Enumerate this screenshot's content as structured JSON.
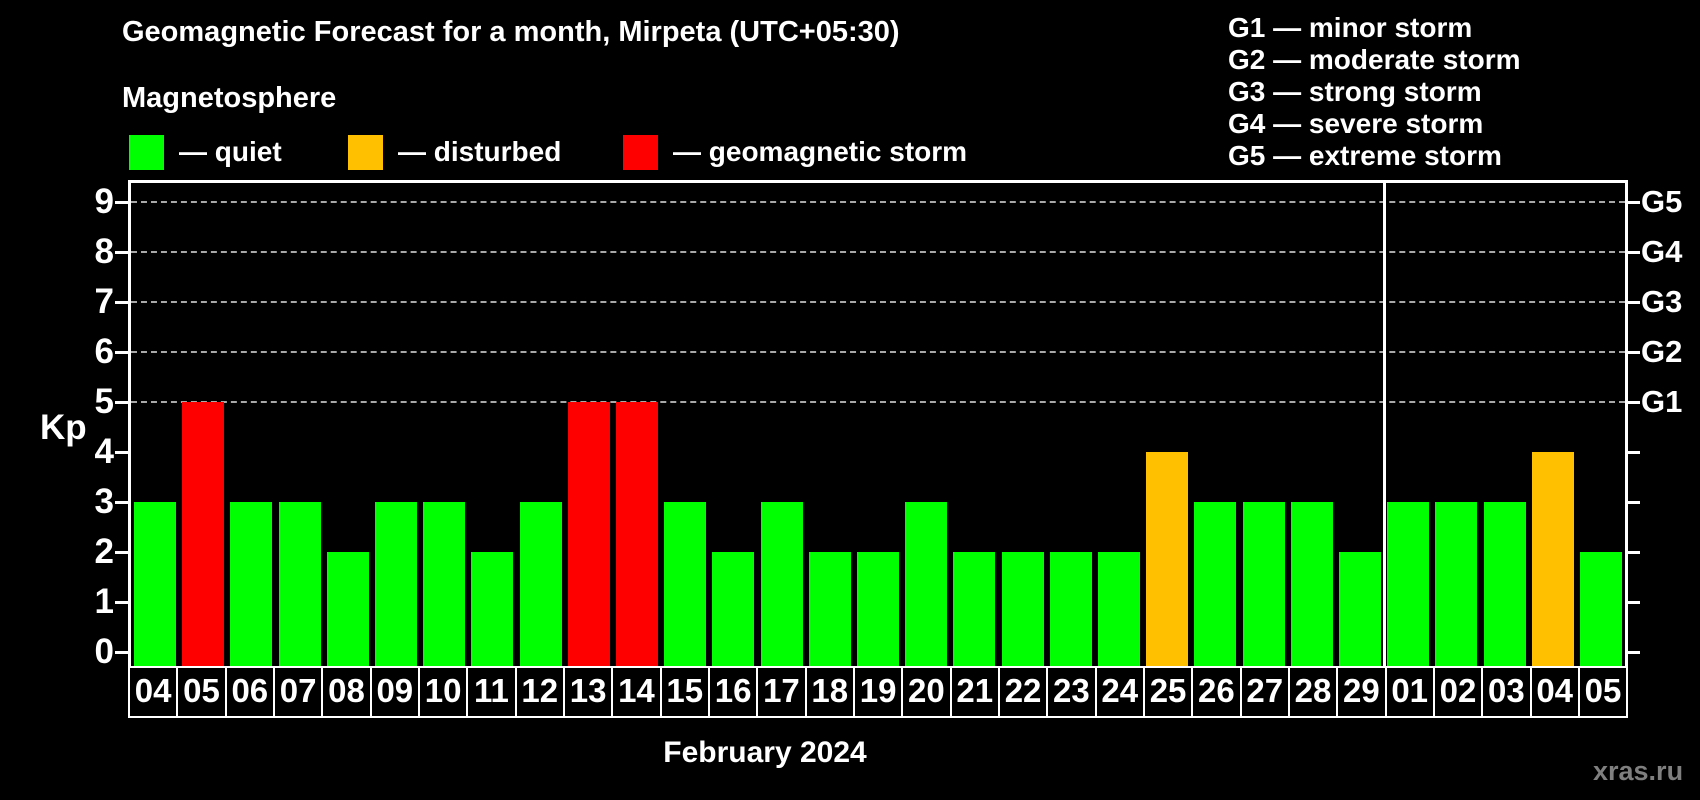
{
  "header": {
    "title": "Geomagnetic Forecast for a month, Mirpeta (UTC+05:30)",
    "subtitle": "Magnetosphere"
  },
  "legend": {
    "items": [
      {
        "key": "quiet",
        "label": "— quiet",
        "color": "#00ff00"
      },
      {
        "key": "disturbed",
        "label": "— disturbed",
        "color": "#ffc000"
      },
      {
        "key": "storm",
        "label": "— geomagnetic storm",
        "color": "#ff0000"
      }
    ]
  },
  "g_legend": {
    "items": [
      "G1 — minor storm",
      "G2 — moderate storm",
      "G3 — strong storm",
      "G4 — severe storm",
      "G5 — extreme storm"
    ]
  },
  "colors": {
    "background": "#000000",
    "axis": "#ffffff",
    "gridline": "#a8a8a8",
    "watermark": "#7f7f7f",
    "levels": {
      "quiet": "#00ff00",
      "disturbed": "#ffc000",
      "storm": "#ff0000"
    }
  },
  "footer": {
    "watermark": "xras.ru"
  },
  "chart_data": {
    "type": "bar",
    "title": "Geomagnetic Forecast for a month, Mirpeta (UTC+05:30)",
    "xlabel": "February 2024",
    "ylabel": "Kp",
    "ylim": [
      0,
      9.4
    ],
    "y_ticks": [
      0,
      1,
      2,
      3,
      4,
      5,
      6,
      7,
      8,
      9
    ],
    "gridlines_at": [
      5,
      6,
      7,
      8,
      9
    ],
    "grid": "dashed, only at G-storm levels 5-9",
    "legend_position": "top-left",
    "right_axis_labels": [
      {
        "kp": 5,
        "text": "G1"
      },
      {
        "kp": 6,
        "text": "G2"
      },
      {
        "kp": 7,
        "text": "G3"
      },
      {
        "kp": 8,
        "text": "G4"
      },
      {
        "kp": 9,
        "text": "G5"
      }
    ],
    "month_separator_after_index": 25,
    "bars": [
      {
        "date": "04",
        "kp": 3,
        "level": "quiet"
      },
      {
        "date": "05",
        "kp": 5,
        "level": "storm"
      },
      {
        "date": "06",
        "kp": 3,
        "level": "quiet"
      },
      {
        "date": "07",
        "kp": 3,
        "level": "quiet"
      },
      {
        "date": "08",
        "kp": 2,
        "level": "quiet"
      },
      {
        "date": "09",
        "kp": 3,
        "level": "quiet"
      },
      {
        "date": "10",
        "kp": 3,
        "level": "quiet"
      },
      {
        "date": "11",
        "kp": 2,
        "level": "quiet"
      },
      {
        "date": "12",
        "kp": 3,
        "level": "quiet"
      },
      {
        "date": "13",
        "kp": 5,
        "level": "storm"
      },
      {
        "date": "14",
        "kp": 5,
        "level": "storm"
      },
      {
        "date": "15",
        "kp": 3,
        "level": "quiet"
      },
      {
        "date": "16",
        "kp": 2,
        "level": "quiet"
      },
      {
        "date": "17",
        "kp": 3,
        "level": "quiet"
      },
      {
        "date": "18",
        "kp": 2,
        "level": "quiet"
      },
      {
        "date": "19",
        "kp": 2,
        "level": "quiet"
      },
      {
        "date": "20",
        "kp": 3,
        "level": "quiet"
      },
      {
        "date": "21",
        "kp": 2,
        "level": "quiet"
      },
      {
        "date": "22",
        "kp": 2,
        "level": "quiet"
      },
      {
        "date": "23",
        "kp": 2,
        "level": "quiet"
      },
      {
        "date": "24",
        "kp": 2,
        "level": "quiet"
      },
      {
        "date": "25",
        "kp": 4,
        "level": "disturbed"
      },
      {
        "date": "26",
        "kp": 3,
        "level": "quiet"
      },
      {
        "date": "27",
        "kp": 3,
        "level": "quiet"
      },
      {
        "date": "28",
        "kp": 3,
        "level": "quiet"
      },
      {
        "date": "29",
        "kp": 2,
        "level": "quiet"
      },
      {
        "date": "01",
        "kp": 3,
        "level": "quiet"
      },
      {
        "date": "02",
        "kp": 3,
        "level": "quiet"
      },
      {
        "date": "03",
        "kp": 3,
        "level": "quiet"
      },
      {
        "date": "04",
        "kp": 4,
        "level": "disturbed"
      },
      {
        "date": "05",
        "kp": 2,
        "level": "quiet"
      }
    ]
  }
}
